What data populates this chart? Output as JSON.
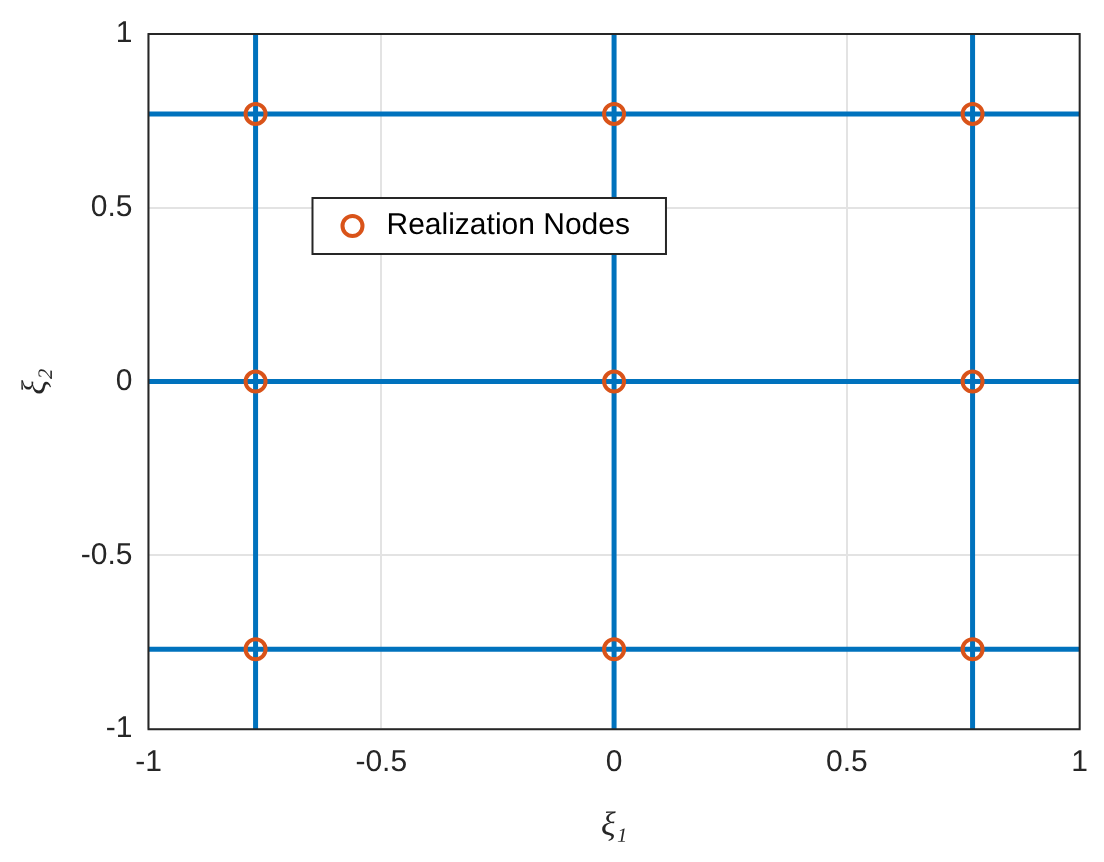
{
  "chart_data": {
    "type": "scatter",
    "xlabel": "ξ₁",
    "ylabel": "ξ₂",
    "series": [
      {
        "type": "line",
        "color": "#0072bd",
        "x": [
          -0.77,
          -0.77
        ],
        "values": [
          -1,
          1
        ]
      },
      {
        "type": "line",
        "color": "#0072bd",
        "x": [
          0,
          0
        ],
        "values": [
          -1,
          1
        ]
      },
      {
        "type": "line",
        "color": "#0072bd",
        "x": [
          0.77,
          0.77
        ],
        "values": [
          -1,
          1
        ]
      },
      {
        "type": "line",
        "color": "#0072bd",
        "x": [
          -1,
          1
        ],
        "values": [
          -0.77,
          -0.77
        ]
      },
      {
        "type": "line",
        "color": "#0072bd",
        "x": [
          -1,
          1
        ],
        "values": [
          0,
          0
        ]
      },
      {
        "type": "line",
        "color": "#0072bd",
        "x": [
          -1,
          1
        ],
        "values": [
          0.77,
          0.77
        ]
      },
      {
        "name": "Realization Nodes",
        "color": "#d95319",
        "marker": "circle",
        "x": [
          -0.77,
          -0.77,
          -0.77,
          0,
          0,
          0,
          0.77,
          0.77,
          0.77
        ],
        "values": [
          -0.77,
          0,
          0.77,
          -0.77,
          0,
          0.77,
          -0.77,
          0,
          0.77
        ]
      }
    ],
    "xlim": [
      -1,
      1
    ],
    "ylim": [
      -1,
      1
    ],
    "xticks": [
      -1,
      -0.5,
      0,
      0.5,
      1
    ],
    "yticks": [
      -1,
      -0.5,
      0,
      0.5,
      1
    ],
    "grid": true,
    "legend": "top left",
    "marker": "none"
  }
}
